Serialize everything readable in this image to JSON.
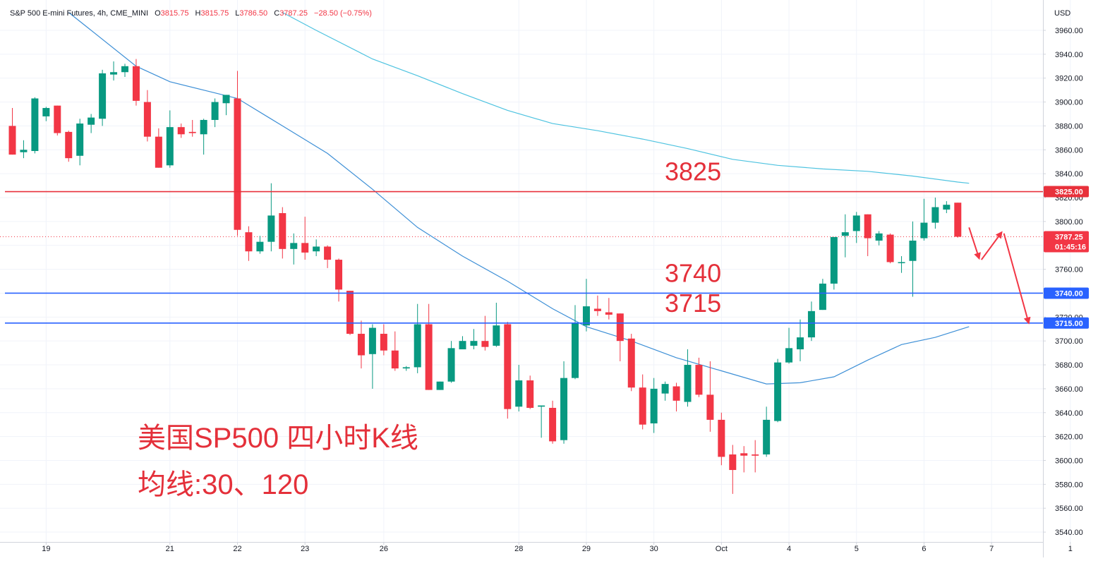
{
  "header": {
    "symbol": "S&P 500 E-mini Futures, 4h, CME_MINI",
    "open_label": "O",
    "open": "3815.75",
    "high_label": "H",
    "high": "3815.75",
    "low_label": "L",
    "low": "3786.50",
    "close_label": "C",
    "close": "3787.25",
    "change": "−28.50 (−0.75%)"
  },
  "currency": "USD",
  "annotations": {
    "title": "美国SP500 四小时K线",
    "subtitle": "均线:30、120",
    "level_3825": "3825",
    "level_3740": "3740",
    "level_3715": "3715"
  },
  "price_tags": {
    "tag_3825": "3825.00",
    "tag_3740": "3740.00",
    "tag_3715": "3715.00",
    "last_price": "3787.25",
    "countdown": "01:45:16"
  },
  "colors": {
    "up": "#089981",
    "down": "#f23645",
    "red_line": "#e8313b",
    "blue_line": "#2962ff",
    "ma30": "#3d8fd6",
    "ma120": "#4ec3e0",
    "annotation": "#e4303a"
  },
  "chart_data": {
    "type": "candlestick",
    "ylim": [
      3530,
      3975
    ],
    "y_ticks": [
      "3960.00",
      "3940.00",
      "3920.00",
      "3900.00",
      "3880.00",
      "3860.00",
      "3840.00",
      "3820.00",
      "3800.00",
      "3780.00",
      "3760.00",
      "3740.00",
      "3720.00",
      "3700.00",
      "3680.00",
      "3660.00",
      "3640.00",
      "3620.00",
      "3600.00",
      "3580.00",
      "3560.00",
      "3540.00"
    ],
    "x_labels": [
      {
        "label": "19",
        "bar": 3
      },
      {
        "label": "21",
        "bar": 14
      },
      {
        "label": "22",
        "bar": 20
      },
      {
        "label": "23",
        "bar": 26
      },
      {
        "label": "26",
        "bar": 33
      },
      {
        "label": "28",
        "bar": 45
      },
      {
        "label": "29",
        "bar": 51
      },
      {
        "label": "30",
        "bar": 57
      },
      {
        "label": "Oct",
        "bar": 63
      },
      {
        "label": "4",
        "bar": 69
      },
      {
        "label": "5",
        "bar": 75
      },
      {
        "label": "6",
        "bar": 81
      },
      {
        "label": "7",
        "bar": 87
      },
      {
        "label": "1",
        "bar": 94
      }
    ],
    "horizontal_levels": [
      3825,
      3740,
      3715
    ],
    "candles": [
      {
        "o": 3880,
        "h": 3895,
        "l": 3856,
        "c": 3856
      },
      {
        "o": 3858,
        "h": 3868,
        "l": 3853,
        "c": 3860
      },
      {
        "o": 3859,
        "h": 3904,
        "l": 3857,
        "c": 3903
      },
      {
        "o": 3888,
        "h": 3896,
        "l": 3884,
        "c": 3895
      },
      {
        "o": 3897,
        "h": 3897,
        "l": 3872,
        "c": 3874
      },
      {
        "o": 3875,
        "h": 3876,
        "l": 3850,
        "c": 3853
      },
      {
        "o": 3855,
        "h": 3886,
        "l": 3847,
        "c": 3882
      },
      {
        "o": 3881,
        "h": 3890,
        "l": 3874,
        "c": 3887
      },
      {
        "o": 3886,
        "h": 3927,
        "l": 3880,
        "c": 3924
      },
      {
        "o": 3923,
        "h": 3934,
        "l": 3918,
        "c": 3925
      },
      {
        "o": 3925,
        "h": 3932,
        "l": 3921,
        "c": 3930
      },
      {
        "o": 3930,
        "h": 3936,
        "l": 3897,
        "c": 3901
      },
      {
        "o": 3900,
        "h": 3910,
        "l": 3867,
        "c": 3871
      },
      {
        "o": 3871,
        "h": 3878,
        "l": 3845,
        "c": 3845
      },
      {
        "o": 3847,
        "h": 3893,
        "l": 3845,
        "c": 3879
      },
      {
        "o": 3879,
        "h": 3882,
        "l": 3870,
        "c": 3873
      },
      {
        "o": 3875,
        "h": 3885,
        "l": 3871,
        "c": 3874
      },
      {
        "o": 3873,
        "h": 3886,
        "l": 3856,
        "c": 3885
      },
      {
        "o": 3885,
        "h": 3903,
        "l": 3879,
        "c": 3900
      },
      {
        "o": 3899,
        "h": 3905,
        "l": 3889,
        "c": 3906
      },
      {
        "o": 3903,
        "h": 3926,
        "l": 3788,
        "c": 3793
      },
      {
        "o": 3791,
        "h": 3796,
        "l": 3767,
        "c": 3775
      },
      {
        "o": 3775,
        "h": 3788,
        "l": 3773,
        "c": 3783
      },
      {
        "o": 3783,
        "h": 3832,
        "l": 3775,
        "c": 3805
      },
      {
        "o": 3807,
        "h": 3812,
        "l": 3769,
        "c": 3777
      },
      {
        "o": 3777,
        "h": 3790,
        "l": 3764,
        "c": 3782
      },
      {
        "o": 3782,
        "h": 3804,
        "l": 3768,
        "c": 3774
      },
      {
        "o": 3775,
        "h": 3785,
        "l": 3771,
        "c": 3779
      },
      {
        "o": 3779,
        "h": 3780,
        "l": 3761,
        "c": 3768
      },
      {
        "o": 3768,
        "h": 3769,
        "l": 3733,
        "c": 3743
      },
      {
        "o": 3742,
        "h": 3741,
        "l": 3705,
        "c": 3706
      },
      {
        "o": 3706,
        "h": 3717,
        "l": 3677,
        "c": 3688
      },
      {
        "o": 3689,
        "h": 3714,
        "l": 3660,
        "c": 3711
      },
      {
        "o": 3706,
        "h": 3714,
        "l": 3688,
        "c": 3692
      },
      {
        "o": 3692,
        "h": 3708,
        "l": 3675,
        "c": 3677
      },
      {
        "o": 3677,
        "h": 3679,
        "l": 3675,
        "c": 3678
      },
      {
        "o": 3678,
        "h": 3731,
        "l": 3673,
        "c": 3714
      },
      {
        "o": 3714,
        "h": 3731,
        "l": 3660,
        "c": 3659
      },
      {
        "o": 3659,
        "h": 3666,
        "l": 3659,
        "c": 3666
      },
      {
        "o": 3666,
        "h": 3700,
        "l": 3665,
        "c": 3694
      },
      {
        "o": 3693,
        "h": 3704,
        "l": 3693,
        "c": 3700
      },
      {
        "o": 3696,
        "h": 3710,
        "l": 3693,
        "c": 3700
      },
      {
        "o": 3700,
        "h": 3721,
        "l": 3692,
        "c": 3695
      },
      {
        "o": 3696,
        "h": 3732,
        "l": 3695,
        "c": 3713
      },
      {
        "o": 3714,
        "h": 3716,
        "l": 3635,
        "c": 3643
      },
      {
        "o": 3645,
        "h": 3680,
        "l": 3641,
        "c": 3667
      },
      {
        "o": 3667,
        "h": 3671,
        "l": 3643,
        "c": 3644
      },
      {
        "o": 3645,
        "h": 3645,
        "l": 3619,
        "c": 3646
      },
      {
        "o": 3644,
        "h": 3650,
        "l": 3614,
        "c": 3616
      },
      {
        "o": 3617,
        "h": 3683,
        "l": 3614,
        "c": 3669
      },
      {
        "o": 3669,
        "h": 3730,
        "l": 3668,
        "c": 3715
      },
      {
        "o": 3713,
        "h": 3752,
        "l": 3708,
        "c": 3729
      },
      {
        "o": 3727,
        "h": 3738,
        "l": 3721,
        "c": 3725
      },
      {
        "o": 3724,
        "h": 3736,
        "l": 3718,
        "c": 3722
      },
      {
        "o": 3723,
        "h": 3720,
        "l": 3683,
        "c": 3700
      },
      {
        "o": 3702,
        "h": 3706,
        "l": 3658,
        "c": 3661
      },
      {
        "o": 3661,
        "h": 3672,
        "l": 3626,
        "c": 3630
      },
      {
        "o": 3631,
        "h": 3669,
        "l": 3623,
        "c": 3660
      },
      {
        "o": 3656,
        "h": 3666,
        "l": 3650,
        "c": 3664
      },
      {
        "o": 3662,
        "h": 3665,
        "l": 3641,
        "c": 3650
      },
      {
        "o": 3649,
        "h": 3693,
        "l": 3645,
        "c": 3680
      },
      {
        "o": 3680,
        "h": 3686,
        "l": 3653,
        "c": 3655
      },
      {
        "o": 3655,
        "h": 3683,
        "l": 3624,
        "c": 3634
      },
      {
        "o": 3634,
        "h": 3640,
        "l": 3596,
        "c": 3603
      },
      {
        "o": 3605,
        "h": 3613,
        "l": 3572,
        "c": 3592
      },
      {
        "o": 3606,
        "h": 3612,
        "l": 3590,
        "c": 3604
      },
      {
        "o": 3605,
        "h": 3617,
        "l": 3590,
        "c": 3604
      },
      {
        "o": 3605,
        "h": 3645,
        "l": 3603,
        "c": 3634
      },
      {
        "o": 3633,
        "h": 3685,
        "l": 3632,
        "c": 3682
      },
      {
        "o": 3682,
        "h": 3711,
        "l": 3681,
        "c": 3694
      },
      {
        "o": 3693,
        "h": 3718,
        "l": 3683,
        "c": 3703
      },
      {
        "o": 3703,
        "h": 3733,
        "l": 3700,
        "c": 3725
      },
      {
        "o": 3726,
        "h": 3752,
        "l": 3726,
        "c": 3748
      },
      {
        "o": 3748,
        "h": 3787,
        "l": 3743,
        "c": 3787
      },
      {
        "o": 3788,
        "h": 3806,
        "l": 3770,
        "c": 3791
      },
      {
        "o": 3792,
        "h": 3808,
        "l": 3782,
        "c": 3805
      },
      {
        "o": 3806,
        "h": 3804,
        "l": 3771,
        "c": 3786
      },
      {
        "o": 3784,
        "h": 3792,
        "l": 3780,
        "c": 3790
      },
      {
        "o": 3789,
        "h": 3790,
        "l": 3765,
        "c": 3766
      },
      {
        "o": 3766,
        "h": 3771,
        "l": 3757,
        "c": 3766
      },
      {
        "o": 3767,
        "h": 3800,
        "l": 3737,
        "c": 3784
      },
      {
        "o": 3786,
        "h": 3819,
        "l": 3784,
        "c": 3799
      },
      {
        "o": 3799,
        "h": 3820,
        "l": 3794,
        "c": 3812
      },
      {
        "o": 3810,
        "h": 3817,
        "l": 3807,
        "c": 3814
      },
      {
        "o": 3815.75,
        "h": 3815.75,
        "l": 3786.5,
        "c": 3787.25
      }
    ],
    "ma30": [
      {
        "bar": 5,
        "v": 3975
      },
      {
        "bar": 11,
        "v": 3930
      },
      {
        "bar": 14,
        "v": 3917
      },
      {
        "bar": 17,
        "v": 3910
      },
      {
        "bar": 20,
        "v": 3903
      },
      {
        "bar": 24,
        "v": 3880
      },
      {
        "bar": 28,
        "v": 3857
      },
      {
        "bar": 32,
        "v": 3827
      },
      {
        "bar": 36,
        "v": 3795
      },
      {
        "bar": 40,
        "v": 3771
      },
      {
        "bar": 44,
        "v": 3750
      },
      {
        "bar": 48,
        "v": 3727
      },
      {
        "bar": 51,
        "v": 3712
      },
      {
        "bar": 55,
        "v": 3700
      },
      {
        "bar": 59,
        "v": 3686
      },
      {
        "bar": 63,
        "v": 3675
      },
      {
        "bar": 67,
        "v": 3664
      },
      {
        "bar": 70,
        "v": 3665
      },
      {
        "bar": 73,
        "v": 3670
      },
      {
        "bar": 76,
        "v": 3684
      },
      {
        "bar": 79,
        "v": 3697
      },
      {
        "bar": 82,
        "v": 3703
      },
      {
        "bar": 85,
        "v": 3712
      }
    ],
    "ma120": [
      {
        "bar": 24,
        "v": 3975
      },
      {
        "bar": 27,
        "v": 3960
      },
      {
        "bar": 32,
        "v": 3936
      },
      {
        "bar": 36,
        "v": 3922
      },
      {
        "bar": 40,
        "v": 3907
      },
      {
        "bar": 44,
        "v": 3893
      },
      {
        "bar": 48,
        "v": 3882
      },
      {
        "bar": 52,
        "v": 3876
      },
      {
        "bar": 56,
        "v": 3869
      },
      {
        "bar": 60,
        "v": 3861
      },
      {
        "bar": 64,
        "v": 3852
      },
      {
        "bar": 68,
        "v": 3847
      },
      {
        "bar": 72,
        "v": 3844
      },
      {
        "bar": 76,
        "v": 3842
      },
      {
        "bar": 80,
        "v": 3838
      },
      {
        "bar": 84,
        "v": 3833
      },
      {
        "bar": 85,
        "v": 3832
      }
    ],
    "arrows": [
      {
        "from": {
          "bar": 85.0,
          "v": 3795
        },
        "to": {
          "bar": 85.9,
          "v": 3769
        }
      },
      {
        "from": {
          "bar": 86.1,
          "v": 3768
        },
        "to": {
          "bar": 87.9,
          "v": 3791
        }
      },
      {
        "from": {
          "bar": 88.1,
          "v": 3790
        },
        "to": {
          "bar": 90.3,
          "v": 3715
        }
      }
    ]
  }
}
